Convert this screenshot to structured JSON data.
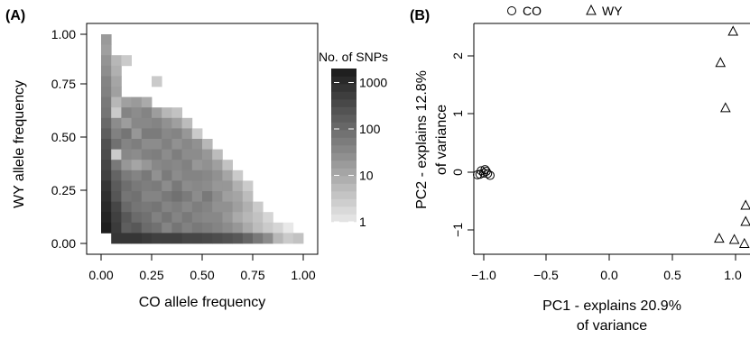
{
  "panel_a": {
    "label": "(A)",
    "chart_data": {
      "type": "heatmap",
      "xlabel": "CO allele frequency",
      "ylabel": "WY allele frequency",
      "x_ticks": [
        "0.00",
        "0.25",
        "0.50",
        "0.75",
        "1.00"
      ],
      "y_ticks": [
        "0.00",
        "0.25",
        "0.50",
        "0.75",
        "1.00"
      ],
      "xlim": [
        0,
        1
      ],
      "ylim": [
        0,
        1
      ],
      "bin_width": 0.05,
      "scale": "log",
      "legend": {
        "title": "No. of SNPs",
        "ticks": [
          "1000",
          "100",
          "10",
          "1"
        ],
        "tick_values": [
          1000,
          100,
          10,
          1
        ],
        "range": [
          1,
          2000
        ],
        "color_low": "#e8e8e8",
        "color_high": "#1a1a1a"
      },
      "cells": [
        [
          0.025,
          0.975,
          18
        ],
        [
          0.025,
          0.925,
          15
        ],
        [
          0.025,
          0.875,
          22
        ],
        [
          0.025,
          0.825,
          28
        ],
        [
          0.025,
          0.775,
          40
        ],
        [
          0.025,
          0.725,
          45
        ],
        [
          0.025,
          0.675,
          60
        ],
        [
          0.025,
          0.625,
          70
        ],
        [
          0.025,
          0.575,
          110
        ],
        [
          0.025,
          0.525,
          160
        ],
        [
          0.025,
          0.475,
          260
        ],
        [
          0.025,
          0.425,
          300
        ],
        [
          0.025,
          0.375,
          400
        ],
        [
          0.025,
          0.325,
          500
        ],
        [
          0.025,
          0.275,
          700
        ],
        [
          0.025,
          0.225,
          900
        ],
        [
          0.025,
          0.175,
          1100
        ],
        [
          0.025,
          0.125,
          1400
        ],
        [
          0.025,
          0.075,
          1700
        ],
        [
          0.075,
          0.875,
          6
        ],
        [
          0.075,
          0.825,
          8
        ],
        [
          0.075,
          0.775,
          12
        ],
        [
          0.075,
          0.725,
          14
        ],
        [
          0.075,
          0.675,
          6
        ],
        [
          0.075,
          0.625,
          3
        ],
        [
          0.075,
          0.575,
          30
        ],
        [
          0.075,
          0.525,
          45
        ],
        [
          0.075,
          0.475,
          80
        ],
        [
          0.075,
          0.425,
          3
        ],
        [
          0.075,
          0.375,
          60
        ],
        [
          0.075,
          0.325,
          130
        ],
        [
          0.075,
          0.275,
          180
        ],
        [
          0.075,
          0.225,
          220
        ],
        [
          0.075,
          0.175,
          400
        ],
        [
          0.075,
          0.125,
          500
        ],
        [
          0.075,
          0.075,
          600
        ],
        [
          0.075,
          0.025,
          700
        ],
        [
          0.125,
          0.875,
          3
        ],
        [
          0.125,
          0.675,
          14
        ],
        [
          0.125,
          0.625,
          40
        ],
        [
          0.125,
          0.575,
          16
        ],
        [
          0.125,
          0.525,
          70
        ],
        [
          0.125,
          0.475,
          40
        ],
        [
          0.125,
          0.425,
          35
        ],
        [
          0.125,
          0.375,
          20
        ],
        [
          0.125,
          0.325,
          55
        ],
        [
          0.125,
          0.275,
          90
        ],
        [
          0.125,
          0.225,
          70
        ],
        [
          0.125,
          0.175,
          110
        ],
        [
          0.125,
          0.125,
          200
        ],
        [
          0.125,
          0.075,
          160
        ],
        [
          0.125,
          0.025,
          700
        ],
        [
          0.175,
          0.675,
          18
        ],
        [
          0.175,
          0.625,
          30
        ],
        [
          0.175,
          0.575,
          35
        ],
        [
          0.175,
          0.525,
          20
        ],
        [
          0.175,
          0.475,
          50
        ],
        [
          0.175,
          0.425,
          30
        ],
        [
          0.175,
          0.375,
          12
        ],
        [
          0.175,
          0.325,
          40
        ],
        [
          0.175,
          0.275,
          60
        ],
        [
          0.175,
          0.225,
          80
        ],
        [
          0.175,
          0.175,
          70
        ],
        [
          0.175,
          0.125,
          100
        ],
        [
          0.175,
          0.075,
          200
        ],
        [
          0.175,
          0.025,
          700
        ],
        [
          0.225,
          0.675,
          10
        ],
        [
          0.225,
          0.625,
          40
        ],
        [
          0.225,
          0.575,
          35
        ],
        [
          0.225,
          0.525,
          55
        ],
        [
          0.225,
          0.475,
          30
        ],
        [
          0.225,
          0.425,
          45
        ],
        [
          0.225,
          0.375,
          20
        ],
        [
          0.225,
          0.325,
          60
        ],
        [
          0.225,
          0.275,
          50
        ],
        [
          0.225,
          0.225,
          40
        ],
        [
          0.225,
          0.175,
          60
        ],
        [
          0.225,
          0.125,
          80
        ],
        [
          0.225,
          0.075,
          100
        ],
        [
          0.225,
          0.025,
          600
        ],
        [
          0.275,
          0.775,
          3
        ],
        [
          0.275,
          0.625,
          16
        ],
        [
          0.275,
          0.575,
          40
        ],
        [
          0.275,
          0.525,
          55
        ],
        [
          0.275,
          0.475,
          30
        ],
        [
          0.275,
          0.425,
          50
        ],
        [
          0.275,
          0.375,
          35
        ],
        [
          0.275,
          0.325,
          25
        ],
        [
          0.275,
          0.275,
          55
        ],
        [
          0.275,
          0.225,
          40
        ],
        [
          0.275,
          0.175,
          70
        ],
        [
          0.275,
          0.125,
          45
        ],
        [
          0.275,
          0.075,
          80
        ],
        [
          0.275,
          0.025,
          500
        ],
        [
          0.325,
          0.625,
          6
        ],
        [
          0.325,
          0.575,
          25
        ],
        [
          0.325,
          0.525,
          35
        ],
        [
          0.325,
          0.475,
          45
        ],
        [
          0.325,
          0.425,
          30
        ],
        [
          0.325,
          0.375,
          40
        ],
        [
          0.325,
          0.325,
          55
        ],
        [
          0.325,
          0.275,
          30
        ],
        [
          0.325,
          0.225,
          60
        ],
        [
          0.325,
          0.175,
          40
        ],
        [
          0.325,
          0.125,
          70
        ],
        [
          0.325,
          0.075,
          40
        ],
        [
          0.325,
          0.025,
          500
        ],
        [
          0.375,
          0.625,
          4
        ],
        [
          0.375,
          0.575,
          15
        ],
        [
          0.375,
          0.525,
          40
        ],
        [
          0.375,
          0.475,
          25
        ],
        [
          0.375,
          0.425,
          50
        ],
        [
          0.375,
          0.375,
          35
        ],
        [
          0.375,
          0.325,
          30
        ],
        [
          0.375,
          0.275,
          60
        ],
        [
          0.375,
          0.225,
          80
        ],
        [
          0.375,
          0.175,
          50
        ],
        [
          0.375,
          0.125,
          40
        ],
        [
          0.375,
          0.075,
          70
        ],
        [
          0.375,
          0.025,
          500
        ],
        [
          0.425,
          0.575,
          5
        ],
        [
          0.425,
          0.525,
          20
        ],
        [
          0.425,
          0.475,
          35
        ],
        [
          0.425,
          0.425,
          30
        ],
        [
          0.425,
          0.375,
          45
        ],
        [
          0.425,
          0.325,
          40
        ],
        [
          0.425,
          0.275,
          30
        ],
        [
          0.425,
          0.225,
          55
        ],
        [
          0.425,
          0.175,
          35
        ],
        [
          0.425,
          0.125,
          60
        ],
        [
          0.425,
          0.075,
          45
        ],
        [
          0.425,
          0.025,
          400
        ],
        [
          0.475,
          0.525,
          3
        ],
        [
          0.475,
          0.475,
          25
        ],
        [
          0.475,
          0.425,
          30
        ],
        [
          0.475,
          0.375,
          20
        ],
        [
          0.475,
          0.325,
          40
        ],
        [
          0.475,
          0.275,
          35
        ],
        [
          0.475,
          0.225,
          30
        ],
        [
          0.475,
          0.175,
          50
        ],
        [
          0.475,
          0.125,
          40
        ],
        [
          0.475,
          0.075,
          60
        ],
        [
          0.475,
          0.025,
          400
        ],
        [
          0.525,
          0.475,
          6
        ],
        [
          0.525,
          0.425,
          20
        ],
        [
          0.525,
          0.375,
          25
        ],
        [
          0.525,
          0.325,
          35
        ],
        [
          0.525,
          0.275,
          30
        ],
        [
          0.525,
          0.225,
          60
        ],
        [
          0.525,
          0.175,
          40
        ],
        [
          0.525,
          0.125,
          35
        ],
        [
          0.525,
          0.075,
          50
        ],
        [
          0.525,
          0.025,
          350
        ],
        [
          0.575,
          0.425,
          5
        ],
        [
          0.575,
          0.375,
          15
        ],
        [
          0.575,
          0.325,
          25
        ],
        [
          0.575,
          0.275,
          20
        ],
        [
          0.575,
          0.225,
          30
        ],
        [
          0.575,
          0.175,
          25
        ],
        [
          0.575,
          0.125,
          35
        ],
        [
          0.575,
          0.075,
          40
        ],
        [
          0.575,
          0.025,
          300
        ],
        [
          0.625,
          0.375,
          4
        ],
        [
          0.625,
          0.325,
          12
        ],
        [
          0.625,
          0.275,
          20
        ],
        [
          0.625,
          0.225,
          15
        ],
        [
          0.625,
          0.175,
          25
        ],
        [
          0.625,
          0.125,
          20
        ],
        [
          0.625,
          0.075,
          30
        ],
        [
          0.625,
          0.025,
          250
        ],
        [
          0.675,
          0.325,
          3
        ],
        [
          0.675,
          0.275,
          8
        ],
        [
          0.675,
          0.225,
          12
        ],
        [
          0.675,
          0.175,
          15
        ],
        [
          0.675,
          0.125,
          10
        ],
        [
          0.675,
          0.075,
          20
        ],
        [
          0.675,
          0.025,
          200
        ],
        [
          0.725,
          0.275,
          3
        ],
        [
          0.725,
          0.225,
          5
        ],
        [
          0.725,
          0.175,
          8
        ],
        [
          0.725,
          0.125,
          6
        ],
        [
          0.725,
          0.075,
          10
        ],
        [
          0.725,
          0.025,
          120
        ],
        [
          0.775,
          0.175,
          3
        ],
        [
          0.775,
          0.125,
          4
        ],
        [
          0.775,
          0.075,
          5
        ],
        [
          0.775,
          0.025,
          60
        ],
        [
          0.825,
          0.125,
          2
        ],
        [
          0.825,
          0.075,
          3
        ],
        [
          0.825,
          0.025,
          30
        ],
        [
          0.875,
          0.075,
          2
        ],
        [
          0.875,
          0.025,
          6
        ],
        [
          0.925,
          0.075,
          1
        ],
        [
          0.925,
          0.025,
          3
        ],
        [
          0.975,
          0.025,
          4
        ]
      ]
    }
  },
  "panel_b": {
    "label": "(B)",
    "chart_data": {
      "type": "scatter",
      "xlabel_line1": "PC1 - explains 20.9%",
      "xlabel_line2": "of variance",
      "ylabel_line1": "PC2 - explains 12.8%",
      "ylabel_line2": "of variance",
      "x_ticks": [
        "−1.0",
        "−0.5",
        "0.0",
        "0.5",
        "1.0"
      ],
      "x_tick_values": [
        -1.0,
        -0.5,
        0.0,
        0.5,
        1.0
      ],
      "y_ticks": [
        "−1",
        "0",
        "1",
        "2"
      ],
      "y_tick_values": [
        -1,
        0,
        1,
        2
      ],
      "xlim": [
        -1.1,
        1.1
      ],
      "ylim": [
        -1.35,
        2.6
      ],
      "legend": {
        "placement": "top"
      },
      "series": [
        {
          "name": "CO",
          "marker": "circle",
          "x": [
            -1.05,
            -1.02,
            -0.99,
            -0.97,
            -0.95,
            -1.0,
            -0.98,
            -1.03
          ],
          "y": [
            -0.05,
            0.02,
            0.04,
            -0.03,
            -0.06,
            -0.02,
            0.01,
            -0.04
          ]
        },
        {
          "name": "WY",
          "marker": "triangle",
          "x": [
            0.98,
            0.88,
            0.92,
            1.08,
            1.08,
            0.87,
            0.99,
            1.07
          ],
          "y": [
            2.42,
            1.88,
            1.1,
            -0.58,
            -0.86,
            -1.15,
            -1.17,
            -1.24
          ]
        }
      ]
    }
  }
}
